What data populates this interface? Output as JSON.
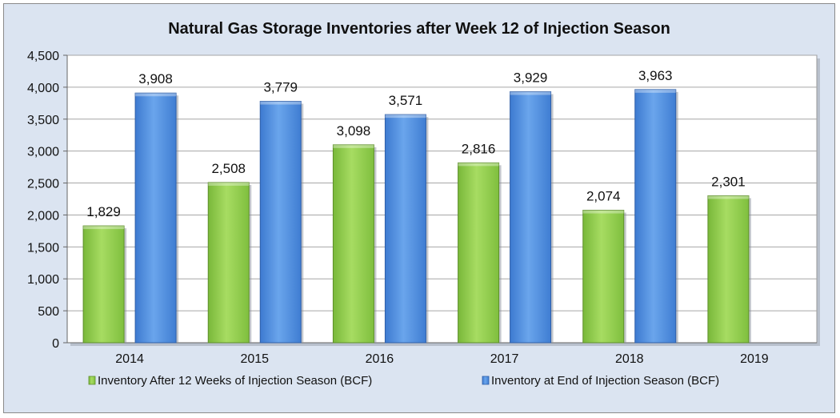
{
  "chart_data": {
    "type": "bar",
    "title": "Natural Gas Storage Inventories after Week 12 of Injection Season",
    "categories": [
      "2014",
      "2015",
      "2016",
      "2017",
      "2018",
      "2019"
    ],
    "series": [
      {
        "name": "Inventory After 12 Weeks of Injection Season (BCF)",
        "color": "#92d050",
        "values": [
          1829,
          2508,
          3098,
          2816,
          2074,
          2301
        ],
        "labels": [
          "1,829",
          "2,508",
          "3,098",
          "2,816",
          "2,074",
          "2,301"
        ]
      },
      {
        "name": "Inventory at End of Injection Season (BCF)",
        "color": "#4f8fe0",
        "values": [
          3908,
          3779,
          3571,
          3929,
          3963,
          null
        ],
        "labels": [
          "3,908",
          "3,779",
          "3,571",
          "3,929",
          "3,963",
          ""
        ]
      }
    ],
    "ylim": [
      0,
      4500
    ],
    "yticks": [
      0,
      500,
      1000,
      1500,
      2000,
      2500,
      3000,
      3500,
      4000,
      4500
    ],
    "ytick_labels": [
      "0",
      "500",
      "1,000",
      "1,500",
      "2,000",
      "2,500",
      "3,000",
      "3,500",
      "4,000",
      "4,500"
    ],
    "grid": true,
    "legend_position": "bottom",
    "plot_background": "#ffffff",
    "frame_background": "#dbe4f1"
  }
}
